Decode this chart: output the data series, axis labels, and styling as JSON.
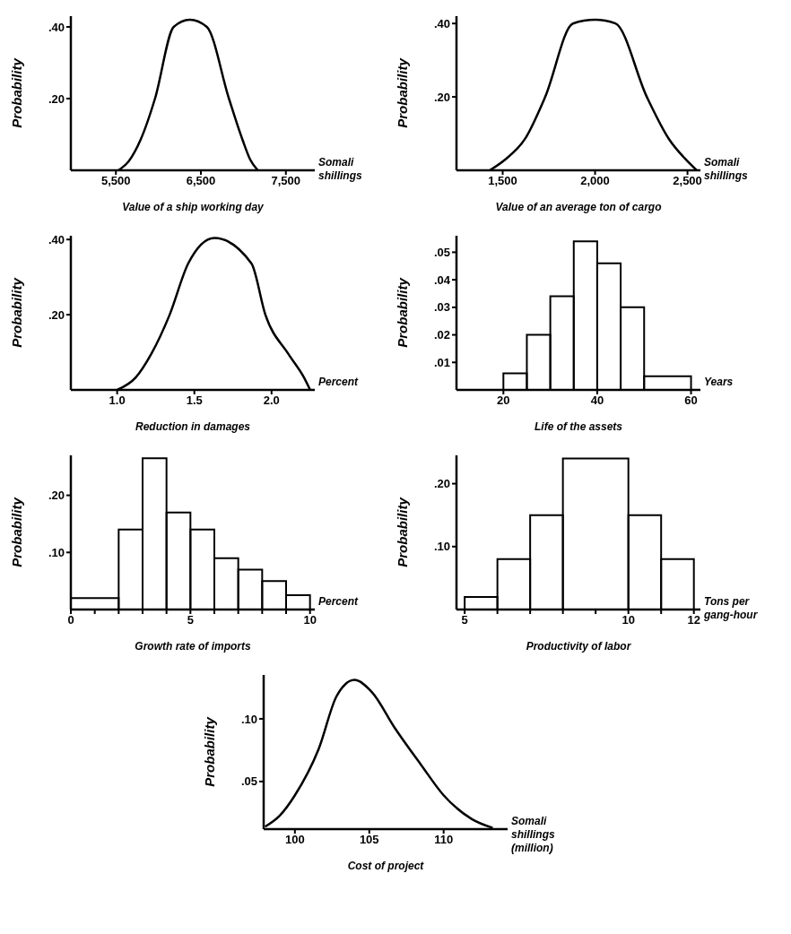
{
  "chart_data": [
    {
      "type": "line",
      "title": "Value of a ship working day",
      "xlabel": "Somali shillings",
      "ylabel": "Probability",
      "color": "#000000",
      "x": [
        5530,
        5650,
        5790,
        5960,
        6180,
        6370,
        6570,
        6830,
        6990,
        7080,
        7170
      ],
      "values": [
        0,
        0.025,
        0.085,
        0.2,
        0.4,
        0.42,
        0.4,
        0.2,
        0.085,
        0.03,
        0
      ],
      "xlim": [
        4970,
        7840
      ],
      "ylim": [
        0,
        0.43
      ],
      "xticks": [
        {
          "value": 5500,
          "label": "5,500"
        },
        {
          "value": 6500,
          "label": "6,500"
        },
        {
          "value": 7500,
          "label": "7,500"
        }
      ],
      "yticks": [
        {
          "value": 0.2,
          "label": ".20"
        },
        {
          "value": 0.4,
          "label": ".40"
        }
      ]
    },
    {
      "type": "line",
      "title": "Value of an average ton of cargo",
      "xlabel": "Somali shillings",
      "ylabel": "Probability",
      "color": "#000000",
      "x": [
        1430,
        1515,
        1620,
        1730,
        1880,
        2000,
        2110,
        2280,
        2400,
        2490,
        2550
      ],
      "values": [
        0,
        0.03,
        0.085,
        0.2,
        0.4,
        0.41,
        0.4,
        0.2,
        0.085,
        0.03,
        0
      ],
      "xlim": [
        1250,
        2570
      ],
      "ylim": [
        0,
        0.42
      ],
      "xticks": [
        {
          "value": 1500,
          "label": "1,500"
        },
        {
          "value": 2000,
          "label": "2,000"
        },
        {
          "value": 2500,
          "label": "2,500"
        }
      ],
      "yticks": [
        {
          "value": 0.2,
          "label": ".20"
        },
        {
          "value": 0.4,
          "label": ".40"
        }
      ]
    },
    {
      "type": "line",
      "title": "Reduction in damages",
      "xlabel": "Percent",
      "ylabel": "Probability",
      "color": "#000000",
      "x": [
        1.0,
        1.12,
        1.22,
        1.34,
        1.46,
        1.63,
        1.87,
        1.96,
        2.11,
        2.21,
        2.25
      ],
      "values": [
        0,
        0.033,
        0.095,
        0.2,
        0.336,
        0.404,
        0.336,
        0.2,
        0.095,
        0.033,
        0
      ],
      "xlim": [
        0.7,
        2.28
      ],
      "ylim": [
        0,
        0.41
      ],
      "xticks": [
        {
          "value": 1.0,
          "label": "1.0"
        },
        {
          "value": 1.5,
          "label": "1.5"
        },
        {
          "value": 2.0,
          "label": "2.0"
        }
      ],
      "yticks": [
        {
          "value": 0.2,
          "label": ".20"
        },
        {
          "value": 0.4,
          "label": ".40"
        }
      ]
    },
    {
      "type": "histogram",
      "title": "Life of the assets",
      "xlabel": "Years",
      "ylabel": "Probability",
      "color": "#000000",
      "bins": [
        20,
        25,
        30,
        35,
        40,
        45,
        50,
        60
      ],
      "values": [
        0.006,
        0.02,
        0.034,
        0.054,
        0.046,
        0.03,
        0.005
      ],
      "xlim": [
        10,
        62
      ],
      "ylim": [
        0,
        0.056
      ],
      "xticks": [
        20,
        40,
        60
      ],
      "yticks": [
        {
          "value": 0.01,
          "label": ".01"
        },
        {
          "value": 0.02,
          "label": ".02"
        },
        {
          "value": 0.03,
          "label": ".03"
        },
        {
          "value": 0.04,
          "label": ".04"
        },
        {
          "value": 0.05,
          "label": ".05"
        }
      ]
    },
    {
      "type": "histogram",
      "title": "Growth rate of imports",
      "xlabel": "Percent",
      "ylabel": "Probability",
      "color": "#000000",
      "bins": [
        0,
        2,
        3,
        4,
        5,
        6,
        7,
        8,
        9,
        10
      ],
      "values": [
        0.02,
        0.14,
        0.265,
        0.17,
        0.14,
        0.09,
        0.07,
        0.05,
        0.025
      ],
      "xlim": [
        0,
        10.2
      ],
      "ylim": [
        0,
        0.27
      ],
      "xticks": [
        0,
        {
          "value": 1,
          "label": null
        },
        {
          "value": 2,
          "label": null
        },
        {
          "value": 3,
          "label": null
        },
        {
          "value": 4,
          "label": null
        },
        5,
        {
          "value": 6,
          "label": null
        },
        {
          "value": 7,
          "label": null
        },
        {
          "value": 8,
          "label": null
        },
        {
          "value": 9,
          "label": null
        },
        10
      ],
      "yticks": [
        {
          "value": 0.1,
          "label": ".10"
        },
        {
          "value": 0.2,
          "label": ".20"
        }
      ]
    },
    {
      "type": "histogram",
      "title": "Productivity of labor",
      "xlabel": "Tons per gang-hour",
      "ylabel": "Probability",
      "color": "#000000",
      "bins": [
        5,
        6,
        7,
        8,
        10,
        11,
        12
      ],
      "values": [
        0.02,
        0.08,
        0.15,
        0.24,
        0.15,
        0.08
      ],
      "xlim": [
        4.75,
        12.2
      ],
      "ylim": [
        0,
        0.245
      ],
      "xticks": [
        5,
        {
          "value": 6,
          "label": null
        },
        {
          "value": 7,
          "label": null
        },
        {
          "value": 8,
          "label": null
        },
        {
          "value": 9,
          "label": null
        },
        10,
        {
          "value": 11,
          "label": null
        },
        12
      ],
      "yticks": [
        {
          "value": 0.1,
          "label": ".10"
        },
        {
          "value": 0.2,
          "label": ".20"
        }
      ]
    },
    {
      "type": "line",
      "title": "Cost of project",
      "xlabel": "Somali shillings (million)",
      "ylabel": "Probability",
      "color": "#000000",
      "x": [
        98,
        99,
        100,
        101.6,
        102.8,
        104,
        105.2,
        106.7,
        108.5,
        110,
        111.9,
        113.3
      ],
      "values": [
        0.014,
        0.023,
        0.039,
        0.076,
        0.118,
        0.131,
        0.121,
        0.093,
        0.063,
        0.039,
        0.02,
        0.013
      ],
      "xlim": [
        97.9,
        114.3
      ],
      "ylim": [
        0.012,
        0.135
      ],
      "xticks": [
        100,
        105,
        110
      ],
      "yticks": [
        {
          "value": 0.05,
          "label": ".05"
        },
        {
          "value": 0.1,
          "label": ".10"
        }
      ]
    }
  ]
}
